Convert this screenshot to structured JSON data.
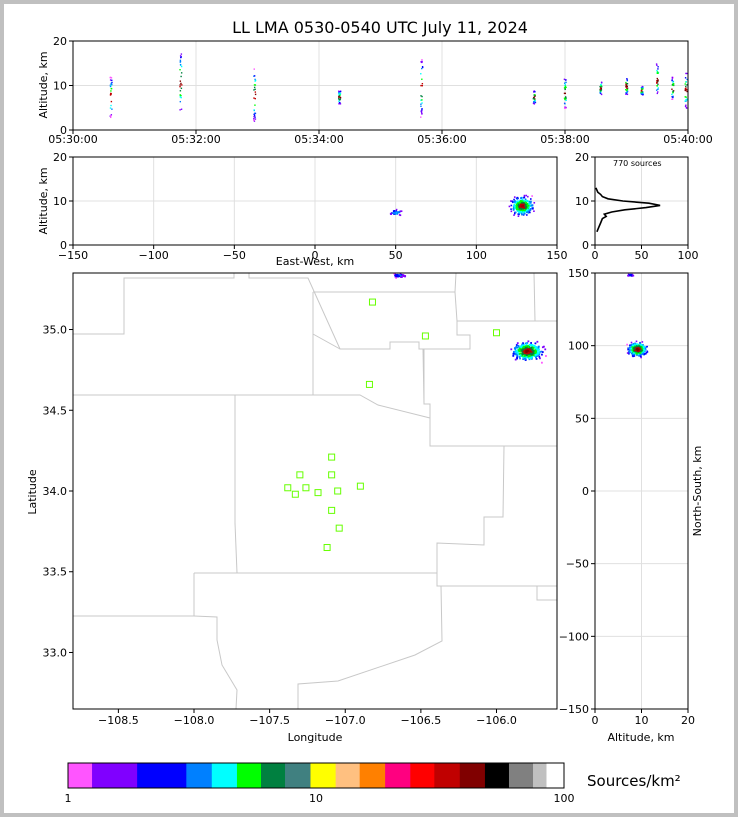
{
  "chart_data": [
    {
      "type": "scatter",
      "title": "LL LMA 0530-0540 UTC July 11, 2024",
      "ylabel": "Altitude, km",
      "xlabel": "",
      "xlim": [
        "05:30:00",
        "05:40:00"
      ],
      "ylim": [
        0,
        20
      ],
      "x_ticks": [
        "05:30:00",
        "05:32:00",
        "05:34:00",
        "05:36:00",
        "05:38:00",
        "05:40:00"
      ],
      "y_ticks": [
        "0",
        "10",
        "20"
      ],
      "grid": true,
      "bursts": [
        {
          "t": "05:30:37",
          "alt_min": 3,
          "alt_max": 12
        },
        {
          "t": "05:31:45",
          "alt_min": 4,
          "alt_max": 18
        },
        {
          "t": "05:32:57",
          "alt_min": 2,
          "alt_max": 14
        },
        {
          "t": "05:34:20",
          "alt_min": 6,
          "alt_max": 9
        },
        {
          "t": "05:35:40",
          "alt_min": 3,
          "alt_max": 16
        },
        {
          "t": "05:37:30",
          "alt_min": 6,
          "alt_max": 9
        },
        {
          "t": "05:38:00",
          "alt_min": 5,
          "alt_max": 12
        },
        {
          "t": "05:38:35",
          "alt_min": 8,
          "alt_max": 11
        },
        {
          "t": "05:39:00",
          "alt_min": 8,
          "alt_max": 12
        },
        {
          "t": "05:39:15",
          "alt_min": 8,
          "alt_max": 10
        },
        {
          "t": "05:39:30",
          "alt_min": 8,
          "alt_max": 15
        },
        {
          "t": "05:39:45",
          "alt_min": 7,
          "alt_max": 12
        },
        {
          "t": "05:39:58",
          "alt_min": 5,
          "alt_max": 13
        }
      ]
    },
    {
      "type": "heatmap",
      "xlabel": "East-West, km",
      "ylabel": "Altitude, km",
      "xlim": [
        -150,
        150
      ],
      "ylim": [
        0,
        20
      ],
      "x_ticks": [
        "−150",
        "−100",
        "−50",
        "0",
        "50",
        "100",
        "150"
      ],
      "y_ticks": [
        "0",
        "10",
        "20"
      ],
      "grid": true,
      "clusters": [
        {
          "x_center": 128,
          "alt_center": 9,
          "x_spread": 10,
          "alt_spread": 3
        },
        {
          "x_center": 50,
          "alt_center": 7.5,
          "x_spread": 6,
          "alt_spread": 1
        }
      ]
    },
    {
      "type": "line",
      "annotation": "770 sources",
      "xlim": [
        0,
        100
      ],
      "ylim": [
        0,
        20
      ],
      "x_ticks": [
        "0",
        "50",
        "100"
      ],
      "y_ticks": [
        "0",
        "10",
        "20"
      ],
      "grid": true,
      "profile": [
        {
          "alt": 3,
          "sources": 2
        },
        {
          "alt": 4,
          "sources": 4
        },
        {
          "alt": 5,
          "sources": 6
        },
        {
          "alt": 6,
          "sources": 8
        },
        {
          "alt": 6.5,
          "sources": 12
        },
        {
          "alt": 7,
          "sources": 10
        },
        {
          "alt": 7.5,
          "sources": 18
        },
        {
          "alt": 8,
          "sources": 32
        },
        {
          "alt": 8.5,
          "sources": 55
        },
        {
          "alt": 9,
          "sources": 70
        },
        {
          "alt": 9.5,
          "sources": 58
        },
        {
          "alt": 10,
          "sources": 30
        },
        {
          "alt": 10.5,
          "sources": 14
        },
        {
          "alt": 11,
          "sources": 8
        },
        {
          "alt": 11.5,
          "sources": 6
        },
        {
          "alt": 12,
          "sources": 3
        },
        {
          "alt": 13,
          "sources": 1
        }
      ]
    },
    {
      "type": "heatmap",
      "xlabel": "Longitude",
      "ylabel": "Latitude",
      "xlim": [
        -108.8,
        -105.6
      ],
      "ylim": [
        32.65,
        35.35
      ],
      "x_ticks": [
        "−108.5",
        "−108.0",
        "−107.5",
        "−107.0",
        "−106.5",
        "−106.0"
      ],
      "y_ticks": [
        "33.0",
        "33.5",
        "34.0",
        "34.5",
        "35.0"
      ],
      "clusters": [
        {
          "lon_center": -105.8,
          "lat_center": 34.87,
          "lon_spread": 0.14,
          "lat_spread": 0.08
        },
        {
          "lon_center": -106.65,
          "lat_center": 35.34,
          "lon_spread": 0.06,
          "lat_spread": 0.02
        }
      ],
      "stations": [
        {
          "lon": -106.82,
          "lat": 35.17
        },
        {
          "lon": -106.47,
          "lat": 34.96
        },
        {
          "lon": -106.0,
          "lat": 34.98
        },
        {
          "lon": -106.84,
          "lat": 34.66
        },
        {
          "lon": -107.09,
          "lat": 34.21
        },
        {
          "lon": -107.3,
          "lat": 34.1
        },
        {
          "lon": -107.09,
          "lat": 34.1
        },
        {
          "lon": -107.38,
          "lat": 34.02
        },
        {
          "lon": -107.26,
          "lat": 34.02
        },
        {
          "lon": -107.33,
          "lat": 33.98
        },
        {
          "lon": -107.18,
          "lat": 33.99
        },
        {
          "lon": -107.05,
          "lat": 34.0
        },
        {
          "lon": -106.9,
          "lat": 34.03
        },
        {
          "lon": -107.09,
          "lat": 33.88
        },
        {
          "lon": -107.04,
          "lat": 33.77
        },
        {
          "lon": -107.12,
          "lat": 33.65
        }
      ]
    },
    {
      "type": "heatmap",
      "xlabel": "Altitude, km",
      "ylabel": "North-South, km",
      "xlim": [
        0,
        20
      ],
      "ylim": [
        -150,
        150
      ],
      "x_ticks": [
        "0",
        "10",
        "20"
      ],
      "y_ticks": [
        "−150",
        "−100",
        "−50",
        "0",
        "50",
        "100",
        "150"
      ],
      "grid": true,
      "clusters": [
        {
          "alt_center": 9,
          "ns_center": 98,
          "alt_spread": 3,
          "ns_spread": 7
        },
        {
          "alt_center": 7.5,
          "ns_center": 149,
          "alt_spread": 1,
          "ns_spread": 1
        }
      ]
    }
  ],
  "colorbar": {
    "label": "Sources/km²",
    "scale": "log",
    "ticks": [
      "1",
      "10",
      "100"
    ],
    "colors": [
      "#ff55ff",
      "#8000ff",
      "#0000ff",
      "#0080ff",
      "#00ffff",
      "#00ff00",
      "#008040",
      "#408080",
      "#ffff00",
      "#ffc080",
      "#ff8000",
      "#ff0080",
      "#ff0000",
      "#c00000",
      "#800000",
      "#000000",
      "#808080",
      "#c0c0c0",
      "#ffffff"
    ]
  }
}
